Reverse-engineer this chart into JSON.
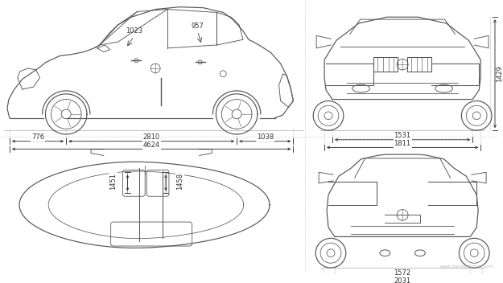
{
  "bg_color": "#ffffff",
  "line_color": "#444444",
  "dim_color": "#333333",
  "text_color": "#333333",
  "fig_width": 6.25,
  "fig_height": 3.52,
  "dpi": 100,
  "watermark": "www.the-blueprints.com",
  "dims": {
    "side_776": "776",
    "side_2810": "2810",
    "side_1038": "1038",
    "side_4624": "4624",
    "side_1023": "1023",
    "side_957": "957",
    "front_1429": "1429",
    "front_1531": "1531",
    "front_1811": "1811",
    "top_1451": "1451",
    "top_1458": "1458",
    "rear_1572": "1572",
    "rear_2031": "2031"
  }
}
